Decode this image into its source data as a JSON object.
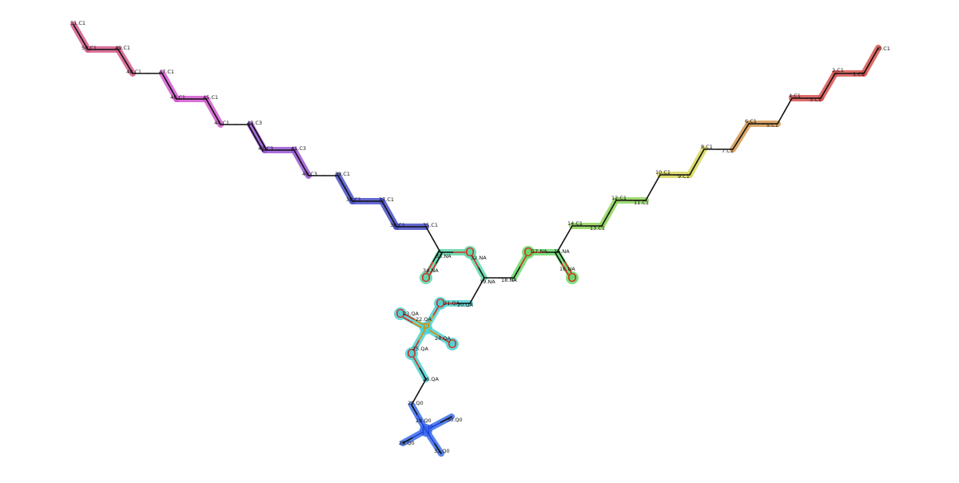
{
  "molecule": {
    "colors": {
      "bond": "#111111",
      "oxygen": "#d42a1e",
      "nitrogen": "#1f3fe0",
      "phosphorus": "#e08a00"
    },
    "atoms": [
      {
        "id": "0",
        "label": "0.C1",
        "element": "C",
        "hl": "#d9534f"
      },
      {
        "id": "1",
        "label": "1.C1",
        "element": "C",
        "hl": "#d9534f"
      },
      {
        "id": "2",
        "label": "2.C1",
        "element": "C",
        "hl": "#d9534f"
      },
      {
        "id": "3",
        "label": "3.C1",
        "element": "C",
        "hl": "#d9534f"
      },
      {
        "id": "4",
        "label": "4.C1",
        "element": "C",
        "hl": "#d9534f"
      },
      {
        "id": "5",
        "label": "5.C1",
        "element": "C",
        "hl": "#d49a50"
      },
      {
        "id": "6",
        "label": "6.C1",
        "element": "C",
        "hl": "#d49a50"
      },
      {
        "id": "7",
        "label": "7.C1",
        "element": "C",
        "hl": "#d49a50"
      },
      {
        "id": "8",
        "label": "8.C1",
        "element": "C",
        "hl": "#d8d85a"
      },
      {
        "id": "9",
        "label": "9.C1",
        "element": "C",
        "hl": "#d8d85a"
      },
      {
        "id": "10",
        "label": "10.C1",
        "element": "C",
        "hl": "#d8d85a"
      },
      {
        "id": "11",
        "label": "11.C1",
        "element": "C",
        "hl": "#8fd45a"
      },
      {
        "id": "12",
        "label": "12.C1",
        "element": "C",
        "hl": "#8fd45a"
      },
      {
        "id": "13",
        "label": "13.C1",
        "element": "C",
        "hl": "#8fd45a"
      },
      {
        "id": "14",
        "label": "14.C1",
        "element": "C",
        "hl": "#8fd45a"
      },
      {
        "id": "15",
        "label": "15.NA",
        "element": "C",
        "hl": "#6ad86a"
      },
      {
        "id": "16",
        "label": "16.NA",
        "element": "O",
        "symbol": "O",
        "hl": "#6ad86a"
      },
      {
        "id": "17",
        "label": "17.NA",
        "element": "O",
        "symbol": "O",
        "hl": "#6ad86a"
      },
      {
        "id": "18",
        "label": "18.NA",
        "element": "C",
        "hl": "#6ad86a"
      },
      {
        "id": "19",
        "label": "19.NA",
        "element": "C",
        "hl": "#5cd6a8"
      },
      {
        "id": "20",
        "label": "20.QA",
        "element": "C",
        "hl": "#4fd1d1"
      },
      {
        "id": "21",
        "label": "21.QA",
        "element": "O",
        "symbol": "O",
        "hl": "#4fd1d1"
      },
      {
        "id": "22",
        "label": "22.QA",
        "element": "P",
        "symbol": "P",
        "hl": "#4fd1d1"
      },
      {
        "id": "23",
        "label": "23.QA",
        "element": "O",
        "symbol": "O",
        "hl": "#4fd1d1"
      },
      {
        "id": "24",
        "label": "24.QA",
        "element": "O",
        "symbol": "O",
        "hl": "#4fd1d1"
      },
      {
        "id": "25",
        "label": "25.QA",
        "element": "O",
        "symbol": "O",
        "hl": "#4fd1d1"
      },
      {
        "id": "26",
        "label": "26.QA",
        "element": "C",
        "hl": "#4fd1d1"
      },
      {
        "id": "27",
        "label": "27.Q0",
        "element": "C",
        "hl": "#3d6ee8"
      },
      {
        "id": "28",
        "label": "28.Q0",
        "element": "N",
        "symbol": "N",
        "charge": "+",
        "hl": "#3d6ee8"
      },
      {
        "id": "29",
        "label": "29.Q0",
        "element": "C",
        "hl": "#3d6ee8"
      },
      {
        "id": "30",
        "label": "30.Q0",
        "element": "C",
        "hl": "#3d6ee8"
      },
      {
        "id": "31",
        "label": "31.Q0",
        "element": "C",
        "hl": "#3d6ee8"
      },
      {
        "id": "32",
        "label": "32.NA",
        "element": "O",
        "symbol": "O",
        "hl": "#5cd6a8"
      },
      {
        "id": "33",
        "label": "33.NA",
        "element": "C",
        "hl": "#5cd6a8"
      },
      {
        "id": "34",
        "label": "34.NA",
        "element": "O",
        "symbol": "O",
        "hl": "#5cd6a8"
      },
      {
        "id": "35",
        "label": "35.C1",
        "element": "C",
        "hl": "#4a50c8"
      },
      {
        "id": "36",
        "label": "36.C1",
        "element": "C",
        "hl": "#4a50c8"
      },
      {
        "id": "37",
        "label": "37.C1",
        "element": "C",
        "hl": "#4a50c8"
      },
      {
        "id": "38",
        "label": "38.C1",
        "element": "C",
        "hl": "#4a50c8"
      },
      {
        "id": "39",
        "label": "39.C1",
        "element": "C",
        "hl": "#4a50c8"
      },
      {
        "id": "40",
        "label": "40.C3",
        "element": "C",
        "hl": "#9a55d6"
      },
      {
        "id": "41",
        "label": "41.C3",
        "element": "C",
        "hl": "#9a55d6"
      },
      {
        "id": "42",
        "label": "42.C3",
        "element": "C",
        "hl": "#9a55d6"
      },
      {
        "id": "43",
        "label": "43.C3",
        "element": "C",
        "hl": "#9a55d6"
      },
      {
        "id": "44",
        "label": "44.C1",
        "element": "C",
        "hl": "#d45ad0"
      },
      {
        "id": "45",
        "label": "45.C1",
        "element": "C",
        "hl": "#d45ad0"
      },
      {
        "id": "46",
        "label": "46.C1",
        "element": "C",
        "hl": "#d45ad0"
      },
      {
        "id": "47",
        "label": "47.C1",
        "element": "C",
        "hl": "#d45ad0"
      },
      {
        "id": "48",
        "label": "48.C1",
        "element": "C",
        "hl": "#d45a8a"
      },
      {
        "id": "49",
        "label": "49.C1",
        "element": "C",
        "hl": "#d45a8a"
      },
      {
        "id": "50",
        "label": "50.C1",
        "element": "C",
        "hl": "#d45a8a"
      },
      {
        "id": "51",
        "label": "51.C1",
        "element": "C",
        "hl": "#d45a8a"
      }
    ],
    "bonds": [
      {
        "a": "0",
        "b": "1",
        "order": 1,
        "hl": "#d9534f"
      },
      {
        "a": "1",
        "b": "2",
        "order": 1,
        "hl": "#d9534f"
      },
      {
        "a": "2",
        "b": "3",
        "order": 1,
        "hl": "#d9534f"
      },
      {
        "a": "3",
        "b": "4",
        "order": 1,
        "hl": "#d9534f"
      },
      {
        "a": "4",
        "b": "5",
        "order": 1
      },
      {
        "a": "5",
        "b": "6",
        "order": 1,
        "hl": "#d49a50"
      },
      {
        "a": "6",
        "b": "7",
        "order": 1,
        "hl": "#d49a50"
      },
      {
        "a": "7",
        "b": "8",
        "order": 1
      },
      {
        "a": "8",
        "b": "9",
        "order": 1,
        "hl": "#d8d85a"
      },
      {
        "a": "9",
        "b": "10",
        "order": 1,
        "hl": "#d8d85a"
      },
      {
        "a": "10",
        "b": "11",
        "order": 1
      },
      {
        "a": "11",
        "b": "12",
        "order": 1,
        "hl": "#8fd45a"
      },
      {
        "a": "12",
        "b": "13",
        "order": 1,
        "hl": "#8fd45a"
      },
      {
        "a": "13",
        "b": "14",
        "order": 1,
        "hl": "#8fd45a"
      },
      {
        "a": "14",
        "b": "15",
        "order": 1
      },
      {
        "a": "15",
        "b": "16",
        "order": 2,
        "hl": "#6ad86a"
      },
      {
        "a": "15",
        "b": "17",
        "order": 1,
        "hl": "#6ad86a"
      },
      {
        "a": "17",
        "b": "18",
        "order": 1,
        "hl": "#6ad86a"
      },
      {
        "a": "18",
        "b": "19",
        "order": 1
      },
      {
        "a": "19",
        "b": "20",
        "order": 1
      },
      {
        "a": "20",
        "b": "21",
        "order": 1,
        "hl": "#4fd1d1"
      },
      {
        "a": "21",
        "b": "22",
        "order": 1,
        "hl": "#4fd1d1"
      },
      {
        "a": "22",
        "b": "23",
        "order": 2,
        "hl": "#4fd1d1"
      },
      {
        "a": "22",
        "b": "24",
        "order": 1,
        "hl": "#4fd1d1"
      },
      {
        "a": "22",
        "b": "25",
        "order": 1,
        "hl": "#4fd1d1"
      },
      {
        "a": "25",
        "b": "26",
        "order": 1,
        "hl": "#4fd1d1"
      },
      {
        "a": "26",
        "b": "27",
        "order": 1
      },
      {
        "a": "27",
        "b": "28",
        "order": 1,
        "hl": "#3d6ee8"
      },
      {
        "a": "28",
        "b": "29",
        "order": 1,
        "hl": "#3d6ee8"
      },
      {
        "a": "28",
        "b": "30",
        "order": 1,
        "hl": "#3d6ee8"
      },
      {
        "a": "28",
        "b": "31",
        "order": 1,
        "hl": "#3d6ee8"
      },
      {
        "a": "19",
        "b": "32",
        "order": 1,
        "hl": "#5cd6a8"
      },
      {
        "a": "32",
        "b": "33",
        "order": 1,
        "hl": "#5cd6a8"
      },
      {
        "a": "33",
        "b": "34",
        "order": 2,
        "hl": "#5cd6a8"
      },
      {
        "a": "33",
        "b": "35",
        "order": 1
      },
      {
        "a": "35",
        "b": "36",
        "order": 1,
        "hl": "#4a50c8"
      },
      {
        "a": "36",
        "b": "37",
        "order": 1,
        "hl": "#4a50c8"
      },
      {
        "a": "37",
        "b": "38",
        "order": 1,
        "hl": "#4a50c8"
      },
      {
        "a": "38",
        "b": "39",
        "order": 1,
        "hl": "#4a50c8"
      },
      {
        "a": "39",
        "b": "40",
        "order": 1
      },
      {
        "a": "40",
        "b": "41",
        "order": 1,
        "hl": "#9a55d6"
      },
      {
        "a": "41",
        "b": "42",
        "order": 1,
        "hl": "#9a55d6"
      },
      {
        "a": "42",
        "b": "43",
        "order": 2,
        "hl": "#9a55d6"
      },
      {
        "a": "43",
        "b": "44",
        "order": 1
      },
      {
        "a": "44",
        "b": "45",
        "order": 1,
        "hl": "#d45ad0"
      },
      {
        "a": "45",
        "b": "46",
        "order": 1,
        "hl": "#d45ad0"
      },
      {
        "a": "46",
        "b": "47",
        "order": 1,
        "hl": "#d45ad0"
      },
      {
        "a": "47",
        "b": "48",
        "order": 1
      },
      {
        "a": "48",
        "b": "49",
        "order": 1,
        "hl": "#d45a8a"
      },
      {
        "a": "49",
        "b": "50",
        "order": 1,
        "hl": "#d45a8a"
      },
      {
        "a": "50",
        "b": "51",
        "order": 1,
        "hl": "#d45a8a"
      }
    ]
  }
}
